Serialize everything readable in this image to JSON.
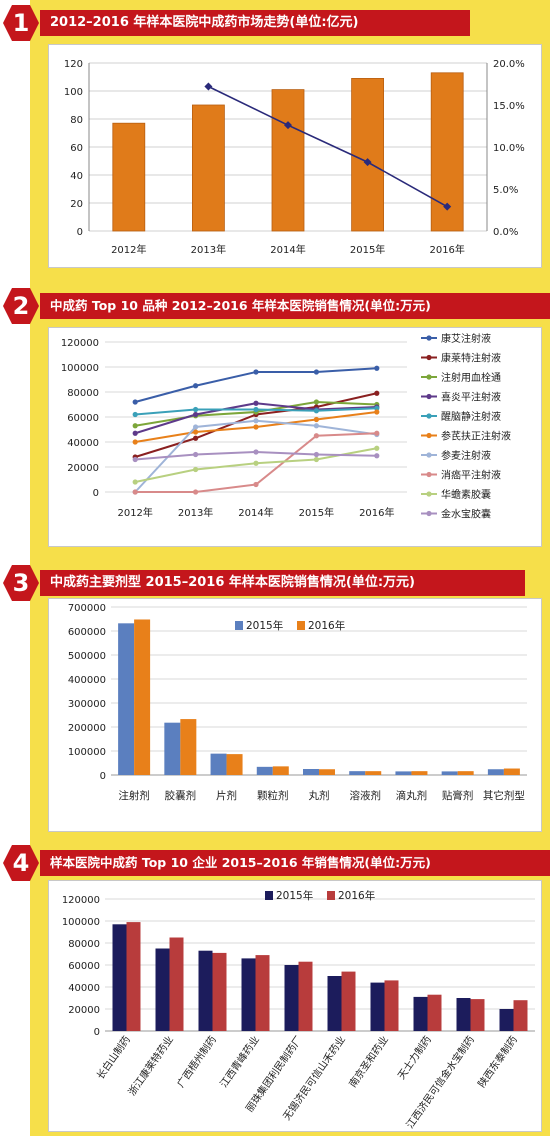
{
  "colors": {
    "banner": "#c4161c",
    "background": "#f6df4a",
    "bar_orange": "#e07b1a",
    "line_navy": "#2a2a7a",
    "series_blue": "#5b7fbf",
    "series_orange": "#e8801a",
    "series_dark_navy": "#1c1c5c",
    "series_red": "#b83c3c"
  },
  "sections": [
    {
      "number": "1",
      "title": "2012–2016 年样本医院中成药市场走势(单位:亿元)"
    },
    {
      "number": "2",
      "title": "中成药 Top 10 品种 2012–2016 年样本医院销售情况(单位:万元)"
    },
    {
      "number": "3",
      "title": "中成药主要剂型 2015–2016 年样本医院销售情况(单位:万元)"
    },
    {
      "number": "4",
      "title": "样本医院中成药 Top 10 企业 2015–2016 年销售情况(单位:万元)"
    }
  ],
  "chart_data": [
    {
      "type": "bar",
      "categories": [
        "2012年",
        "2013年",
        "2014年",
        "2015年",
        "2016年"
      ],
      "series": [
        {
          "values": [
            77,
            90,
            101,
            109,
            113
          ],
          "axis": "left",
          "type": "bar"
        },
        {
          "values": [
            null,
            17.2,
            12.6,
            8.2,
            2.9
          ],
          "axis": "right",
          "type": "line"
        }
      ],
      "ylim": [
        0,
        120
      ],
      "yticks": [
        "0",
        "20",
        "40",
        "60",
        "80",
        "100",
        "120"
      ],
      "y2lim": [
        0,
        20
      ],
      "y2ticks": [
        "0.0%",
        "5.0%",
        "10.0%",
        "15.0%",
        "20.0%"
      ],
      "grid": true
    },
    {
      "type": "line",
      "x": [
        "2012年",
        "2013年",
        "2014年",
        "2015年",
        "2016年"
      ],
      "ylim": [
        0,
        120000
      ],
      "yticks": [
        "0",
        "20000",
        "40000",
        "60000",
        "80000",
        "100000",
        "120000"
      ],
      "legend_position": "right",
      "grid": true,
      "series": [
        {
          "name": "康艾注射液",
          "color": "#3a5ea8",
          "values": [
            72000,
            85000,
            96000,
            96000,
            99000
          ]
        },
        {
          "name": "康莱特注射液",
          "color": "#8a2020",
          "values": [
            28000,
            43000,
            62000,
            68000,
            79000
          ]
        },
        {
          "name": "注射用血栓通",
          "color": "#7ca63a",
          "values": [
            53000,
            61000,
            64000,
            72000,
            70000
          ]
        },
        {
          "name": "喜炎平注射液",
          "color": "#5e3a8a",
          "values": [
            47000,
            62000,
            71000,
            66000,
            68000
          ]
        },
        {
          "name": "醒脑静注射液",
          "color": "#3aa0b8",
          "values": [
            62000,
            66000,
            66000,
            65000,
            67000
          ]
        },
        {
          "name": "参芪扶正注射液",
          "color": "#e8801a",
          "values": [
            40000,
            48000,
            52000,
            58000,
            64000
          ]
        },
        {
          "name": "参麦注射液",
          "color": "#9fb4d8",
          "values": [
            0,
            52000,
            57000,
            53000,
            46000
          ]
        },
        {
          "name": "消癌平注射液",
          "color": "#d88a8a",
          "values": [
            0,
            0,
            6000,
            45000,
            47000
          ]
        },
        {
          "name": "华蟾素胶囊",
          "color": "#b8d080",
          "values": [
            8000,
            18000,
            23000,
            26000,
            35000
          ]
        },
        {
          "name": "金水宝胶囊",
          "color": "#a890c0",
          "values": [
            26000,
            30000,
            32000,
            30000,
            29000
          ]
        }
      ]
    },
    {
      "type": "bar",
      "categories": [
        "注射剂",
        "胶囊剂",
        "片剂",
        "颗粒剂",
        "丸剂",
        "溶液剂",
        "滴丸剂",
        "贴膏剂",
        "其它剂型"
      ],
      "series": [
        {
          "name": "2015年",
          "values": [
            632000,
            218000,
            89000,
            34000,
            25000,
            16000,
            15000,
            15000,
            24000
          ]
        },
        {
          "name": "2016年",
          "values": [
            648000,
            233000,
            87000,
            36000,
            24000,
            16000,
            16000,
            16000,
            27000
          ]
        }
      ],
      "ylim": [
        0,
        700000
      ],
      "yticks": [
        "0",
        "100000",
        "200000",
        "300000",
        "400000",
        "500000",
        "600000",
        "700000"
      ],
      "legend_position": "top",
      "grid": true
    },
    {
      "type": "bar",
      "categories": [
        "长白山制药",
        "浙江康莱特药业",
        "广西梧州制药",
        "江西青峰药业",
        "丽珠集团利民制药厂",
        "无锡济民可信山禾药业",
        "南京圣和药业",
        "天士力制药",
        "江西济民可信金水宝制药",
        "陕西东泰制药"
      ],
      "series": [
        {
          "name": "2015年",
          "values": [
            97000,
            75000,
            73000,
            66000,
            60000,
            50000,
            44000,
            31000,
            30000,
            20000
          ]
        },
        {
          "name": "2016年",
          "values": [
            99000,
            85000,
            71000,
            69000,
            63000,
            54000,
            46000,
            33000,
            29000,
            28000
          ]
        }
      ],
      "ylim": [
        0,
        120000
      ],
      "yticks": [
        "0",
        "20000",
        "40000",
        "60000",
        "80000",
        "100000",
        "120000"
      ],
      "legend_position": "top",
      "grid": true
    }
  ]
}
